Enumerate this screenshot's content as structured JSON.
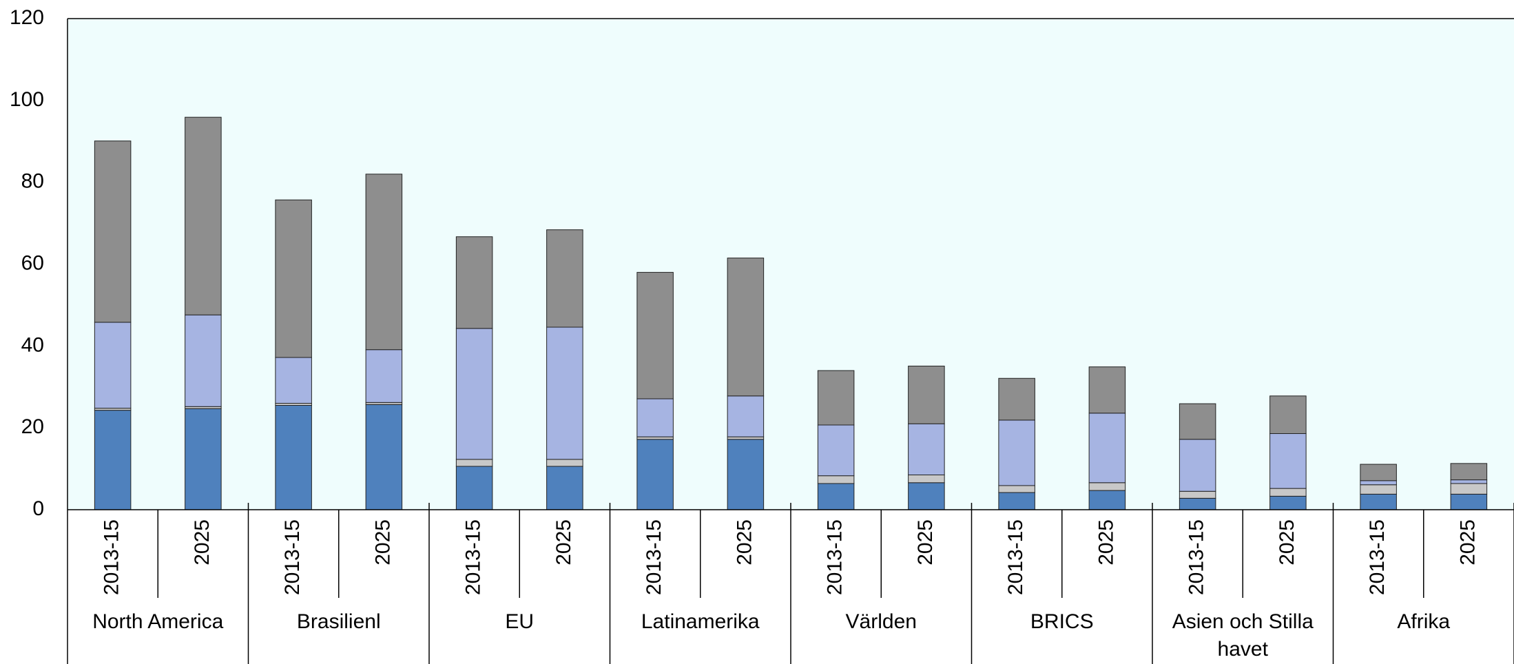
{
  "chart_data": {
    "type": "stacked_bar",
    "groups": [
      "North America",
      "Brasilienl",
      "EU",
      "Latinamerika",
      "Världen",
      "BRICS",
      "Asien och Stilla havet",
      "Afrika"
    ],
    "categories": [
      "2013-15",
      "2025",
      "2013-15",
      "2025",
      "2013-15",
      "2025",
      "2013-15",
      "2025",
      "2013-15",
      "2025",
      "2013-15",
      "2025",
      "2013-15",
      "2025",
      "2013-15",
      "2025"
    ],
    "series": [
      {
        "color": "#4f81bd",
        "values": [
          24.3,
          24.7,
          25.5,
          25.7,
          10.6,
          10.6,
          17.2,
          17.2,
          6.4,
          6.6,
          4.2,
          4.7,
          2.8,
          3.3,
          3.8,
          3.8
        ]
      },
      {
        "color": "#c8c8c8",
        "values": [
          0.5,
          0.5,
          0.5,
          0.5,
          1.7,
          1.7,
          0.6,
          0.6,
          1.9,
          1.9,
          1.7,
          1.9,
          1.7,
          1.9,
          2.3,
          2.6
        ]
      },
      {
        "color": "#a6b4e2",
        "values": [
          21.0,
          22.4,
          11.2,
          12.9,
          32.0,
          32.3,
          9.3,
          10.0,
          12.4,
          12.5,
          16.0,
          17.0,
          12.7,
          13.4,
          1.0,
          0.9
        ]
      },
      {
        "color": "#8e8e8e",
        "values": [
          44.3,
          48.3,
          38.5,
          42.9,
          22.4,
          23.8,
          30.9,
          33.7,
          13.3,
          14.1,
          10.2,
          11.3,
          8.7,
          9.2,
          4.0,
          4.0
        ]
      }
    ],
    "ylim": [
      0,
      120
    ],
    "yticks": [
      0,
      20,
      40,
      60,
      80,
      100,
      120
    ],
    "grid": false,
    "background": "#effdfd"
  }
}
